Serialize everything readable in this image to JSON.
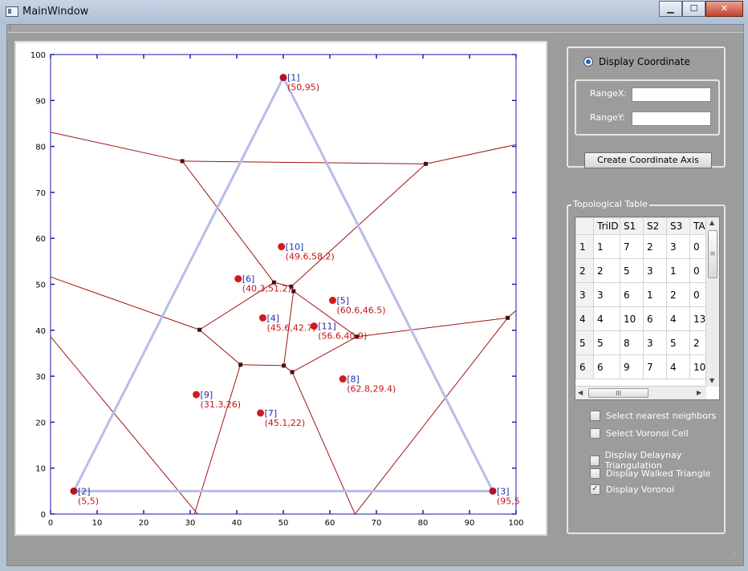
{
  "window": {
    "title": "MainWindow",
    "min_label": "▁",
    "max_label": "☐",
    "close_label": "✕"
  },
  "plot": {
    "xlim": [
      0,
      100
    ],
    "ylim": [
      0,
      100
    ],
    "x_ticks": [
      "0",
      "10",
      "20",
      "30",
      "40",
      "50",
      "60",
      "70",
      "80",
      "90",
      "100"
    ],
    "y_ticks": [
      "0",
      "10",
      "20",
      "30",
      "40",
      "50",
      "60",
      "70",
      "80",
      "90",
      "100"
    ],
    "colors": {
      "axis": "#1a1ab4",
      "triangle": "#b8bce8",
      "voronoi": "#a01414",
      "point": "#d2191e",
      "vertex": "#4a1010"
    },
    "points": [
      {
        "name": "[1]",
        "coord": "(50,95)",
        "x": 50,
        "y": 95,
        "dark": true
      },
      {
        "name": "[2]",
        "coord": "(5,5)",
        "x": 5,
        "y": 5,
        "dark": true
      },
      {
        "name": "[3]",
        "coord": "(95,5",
        "x": 95,
        "y": 5,
        "dark": true
      },
      {
        "name": "[4]",
        "coord": "(45.6,42.7)",
        "x": 45.6,
        "y": 42.7
      },
      {
        "name": "[5]",
        "coord": "(60.6,46.5)",
        "x": 60.6,
        "y": 46.5
      },
      {
        "name": "[6]",
        "coord": "(40.3,51.2)",
        "x": 40.3,
        "y": 51.2
      },
      {
        "name": "[7]",
        "coord": "(45.1,22)",
        "x": 45.1,
        "y": 22
      },
      {
        "name": "[8]",
        "coord": "(62.8,29.4)",
        "x": 62.8,
        "y": 29.4
      },
      {
        "name": "[9]",
        "coord": "(31.3,26)",
        "x": 31.3,
        "y": 26
      },
      {
        "name": "[10]",
        "coord": "(49.6,58.2)",
        "x": 49.6,
        "y": 58.2
      },
      {
        "name": "[11]",
        "coord": "(56.6,40.9)",
        "x": 56.6,
        "y": 40.9
      }
    ],
    "triangle": [
      [
        50,
        95
      ],
      [
        5,
        5
      ],
      [
        95,
        5
      ]
    ],
    "voronoi_segments": [
      [
        [
          0,
          83.1
        ],
        [
          28.3,
          76.8
        ]
      ],
      [
        [
          28.3,
          76.8
        ],
        [
          80.6,
          76.2
        ]
      ],
      [
        [
          80.6,
          76.2
        ],
        [
          100,
          80.4
        ]
      ],
      [
        [
          28.3,
          76.8
        ],
        [
          48,
          50.4
        ]
      ],
      [
        [
          80.6,
          76.2
        ],
        [
          51.7,
          49.5
        ]
      ],
      [
        [
          48,
          50.4
        ],
        [
          51.7,
          49.5
        ]
      ],
      [
        [
          51.7,
          49.5
        ],
        [
          52.2,
          48.5
        ]
      ],
      [
        [
          0,
          51.6
        ],
        [
          32,
          40.1
        ]
      ],
      [
        [
          32,
          40.1
        ],
        [
          48,
          50.4
        ]
      ],
      [
        [
          32,
          40.1
        ],
        [
          40.8,
          32.5
        ]
      ],
      [
        [
          40.8,
          32.5
        ],
        [
          50.1,
          32.3
        ]
      ],
      [
        [
          50.1,
          32.3
        ],
        [
          52.2,
          48.5
        ]
      ],
      [
        [
          52.2,
          48.5
        ],
        [
          65.8,
          38.6
        ]
      ],
      [
        [
          65.8,
          38.6
        ],
        [
          98.2,
          42.7
        ]
      ],
      [
        [
          98.2,
          42.7
        ],
        [
          100,
          44.3
        ]
      ],
      [
        [
          50.1,
          32.3
        ],
        [
          51.9,
          30.9
        ]
      ],
      [
        [
          51.9,
          30.9
        ],
        [
          65.8,
          38.6
        ]
      ],
      [
        [
          40.8,
          32.5
        ],
        [
          30.9,
          0
        ]
      ],
      [
        [
          0,
          38.6
        ],
        [
          31.6,
          0
        ]
      ],
      [
        [
          51.9,
          30.9
        ],
        [
          65.4,
          0
        ]
      ],
      [
        [
          98.2,
          42.7
        ],
        [
          65.4,
          0
        ]
      ]
    ],
    "voronoi_vertices": [
      [
        28.3,
        76.8
      ],
      [
        80.6,
        76.2
      ],
      [
        48,
        50.4
      ],
      [
        51.7,
        49.5
      ],
      [
        52.2,
        48.5
      ],
      [
        32,
        40.1
      ],
      [
        65.8,
        38.6
      ],
      [
        98.2,
        42.7
      ],
      [
        40.8,
        32.5
      ],
      [
        50.1,
        32.3
      ],
      [
        51.9,
        30.9
      ]
    ]
  },
  "coord_panel": {
    "display_coordinate_label": "Display Coordinate",
    "rangex_label": "RangeX:",
    "rangey_label": "RangeY:",
    "rangex_value": "",
    "rangey_value": "",
    "create_button": "Create Coordinate Axis"
  },
  "topo_panel": {
    "title": "Topological Table",
    "headers": [
      "TriID",
      "S1",
      "S2",
      "S3",
      "TA"
    ],
    "rows": [
      {
        "rowhead": "1",
        "cells": [
          "1",
          "7",
          "2",
          "3",
          "0"
        ]
      },
      {
        "rowhead": "2",
        "cells": [
          "2",
          "5",
          "3",
          "1",
          "0"
        ]
      },
      {
        "rowhead": "3",
        "cells": [
          "3",
          "6",
          "1",
          "2",
          "0"
        ]
      },
      {
        "rowhead": "4",
        "cells": [
          "4",
          "10",
          "6",
          "4",
          "13"
        ]
      },
      {
        "rowhead": "5",
        "cells": [
          "5",
          "8",
          "3",
          "5",
          "2"
        ]
      },
      {
        "rowhead": "6",
        "cells": [
          "6",
          "9",
          "7",
          "4",
          "10"
        ]
      }
    ],
    "hscroll_thumb_label": "III",
    "vscroll_thumb_label": "≡",
    "checkboxes": [
      {
        "label": "Select  nearest neighbors",
        "checked": false
      },
      {
        "label": "Select Voronoi Cell",
        "checked": false
      },
      {
        "label": "Display Delaynay Triangulation",
        "checked": false
      },
      {
        "label": "Display Walked Triangle",
        "checked": false
      },
      {
        "label": "Display Voronoi",
        "checked": true
      }
    ]
  }
}
